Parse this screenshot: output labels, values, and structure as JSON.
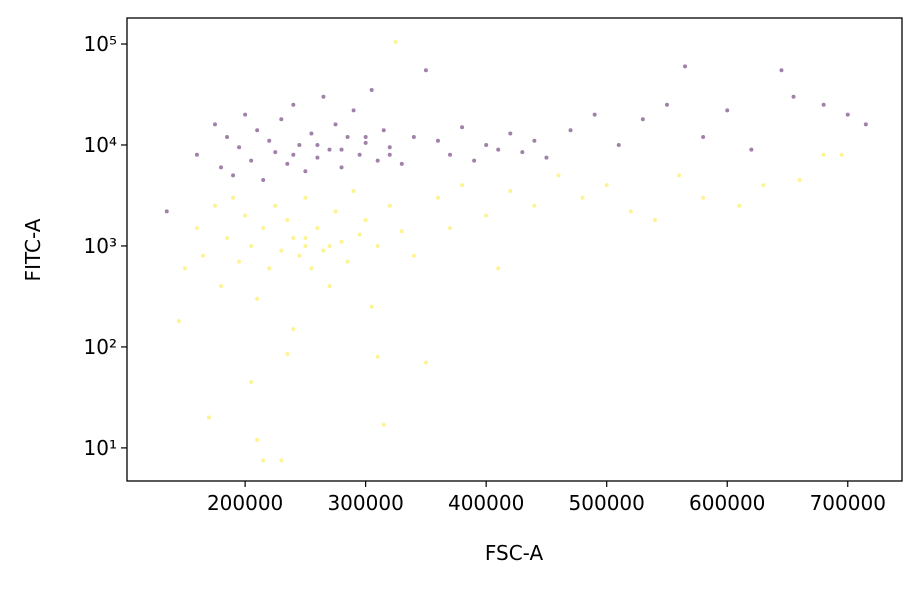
{
  "chart_data": {
    "type": "scatter",
    "x_label": "FSC-A",
    "y_label": "FITC-A",
    "xlim": [
      102000,
      745000
    ],
    "xticks": [
      200000,
      300000,
      400000,
      500000,
      600000,
      700000
    ],
    "ylim": [
      4.7,
      181000
    ],
    "y_log": true,
    "yticks": [
      {
        "value": 10,
        "label": "10¹"
      },
      {
        "value": 100,
        "label": "10²"
      },
      {
        "value": 1000,
        "label": "10³"
      },
      {
        "value": 10000,
        "label": "10⁴"
      },
      {
        "value": 100000,
        "label": "10⁵"
      }
    ],
    "opacity": 0.5,
    "series": [
      {
        "color": "#440154",
        "x": [
          135000,
          160000,
          175000,
          180000,
          185000,
          190000,
          195000,
          200000,
          205000,
          210000,
          215000,
          220000,
          225000,
          230000,
          235000,
          240000,
          245000,
          250000,
          255000,
          260000,
          265000,
          270000,
          275000,
          280000,
          285000,
          290000,
          295000,
          300000,
          305000,
          310000,
          315000,
          320000,
          330000,
          340000,
          350000,
          360000,
          370000,
          380000,
          390000,
          400000,
          410000,
          420000,
          430000,
          440000,
          450000,
          470000,
          490000,
          510000,
          530000,
          550000,
          565000,
          580000,
          600000,
          620000,
          645000,
          655000,
          680000,
          700000,
          715000,
          260000,
          280000,
          240000,
          300000,
          320000
        ],
        "values": [
          2200,
          8000,
          16000,
          6000,
          12000,
          5000,
          9500,
          20000,
          7000,
          14000,
          4500,
          11000,
          8500,
          18000,
          6500,
          25000,
          10000,
          5500,
          13000,
          7500,
          30000,
          9000,
          16000,
          6000,
          12000,
          22000,
          8000,
          10500,
          35000,
          7000,
          14000,
          9500,
          6500,
          12000,
          55000,
          11000,
          8000,
          15000,
          7000,
          10000,
          9000,
          13000,
          8500,
          11000,
          7500,
          14000,
          20000,
          10000,
          18000,
          25000,
          60000,
          12000,
          22000,
          9000,
          55000,
          30000,
          25000,
          20000,
          16000,
          10000,
          9000,
          8000,
          12000,
          8000
        ]
      },
      {
        "color": "#fde725",
        "x": [
          145000,
          150000,
          160000,
          165000,
          170000,
          175000,
          180000,
          185000,
          190000,
          195000,
          200000,
          205000,
          210000,
          210000,
          215000,
          215000,
          220000,
          225000,
          230000,
          230000,
          235000,
          240000,
          240000,
          245000,
          250000,
          250000,
          255000,
          260000,
          265000,
          270000,
          275000,
          280000,
          285000,
          290000,
          295000,
          300000,
          305000,
          310000,
          315000,
          320000,
          325000,
          330000,
          340000,
          350000,
          360000,
          370000,
          380000,
          400000,
          410000,
          420000,
          440000,
          460000,
          480000,
          500000,
          520000,
          540000,
          560000,
          580000,
          610000,
          630000,
          660000,
          680000,
          695000,
          250000,
          270000,
          235000,
          205000,
          310000
        ],
        "values": [
          180,
          600,
          1500,
          800,
          20,
          2500,
          400,
          1200,
          3000,
          700,
          2000,
          1000,
          12,
          300,
          7.5,
          1500,
          600,
          2500,
          7.5,
          900,
          1800,
          1200,
          150,
          800,
          3000,
          1000,
          600,
          1500,
          900,
          400,
          2200,
          1100,
          700,
          3500,
          1300,
          1800,
          250,
          1000,
          17,
          2500,
          105000,
          1400,
          800,
          70,
          3000,
          1500,
          4000,
          2000,
          600,
          3500,
          2500,
          5000,
          3000,
          4000,
          2200,
          1800,
          5000,
          3000,
          2500,
          4000,
          4500,
          8000,
          8000,
          1200,
          1000,
          85,
          45,
          80
        ]
      }
    ]
  }
}
